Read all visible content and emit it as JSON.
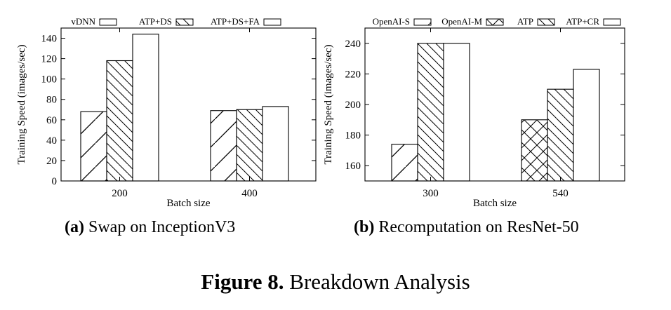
{
  "figure_caption": {
    "label": "Figure 8.",
    "text": "Breakdown Analysis"
  },
  "subcaptions": [
    {
      "label": "(a)",
      "text": "Swap on InceptionV3"
    },
    {
      "label": "(b)",
      "text": "Recomputation on ResNet-50"
    }
  ],
  "patterns": {
    "vDNN": "sparse-fwd",
    "ATP+DS": "back",
    "ATP+DS+FA": "none",
    "OpenAI-S": "sparse-fwd",
    "OpenAI-M": "cross",
    "ATP": "back",
    "ATP+CR": "none"
  },
  "chart_data": [
    {
      "type": "bar",
      "xlabel": "Batch size",
      "ylabel": "Training Speed (images/sec)",
      "categories": [
        "200",
        "400"
      ],
      "series": [
        {
          "name": "vDNN",
          "values": [
            68,
            69
          ]
        },
        {
          "name": "ATP+DS",
          "values": [
            118,
            70
          ]
        },
        {
          "name": "ATP+DS+FA",
          "values": [
            144,
            73
          ]
        }
      ],
      "ylim": [
        0,
        150
      ],
      "yticks": [
        0,
        20,
        40,
        60,
        80,
        100,
        120,
        140
      ],
      "grid": false,
      "legend": "top"
    },
    {
      "type": "bar",
      "xlabel": "Batch size",
      "ylabel": "Training Speed (images/sec)",
      "categories": [
        "300",
        "540"
      ],
      "series": [
        {
          "name": "OpenAI-S",
          "values": [
            174,
            null
          ]
        },
        {
          "name": "OpenAI-M",
          "values": [
            null,
            190
          ]
        },
        {
          "name": "ATP",
          "values": [
            240,
            210
          ]
        },
        {
          "name": "ATP+CR",
          "values": [
            240,
            223
          ]
        }
      ],
      "ylim": [
        150,
        250
      ],
      "yticks": [
        160,
        180,
        200,
        220,
        240
      ],
      "grid": false,
      "legend": "top"
    }
  ]
}
